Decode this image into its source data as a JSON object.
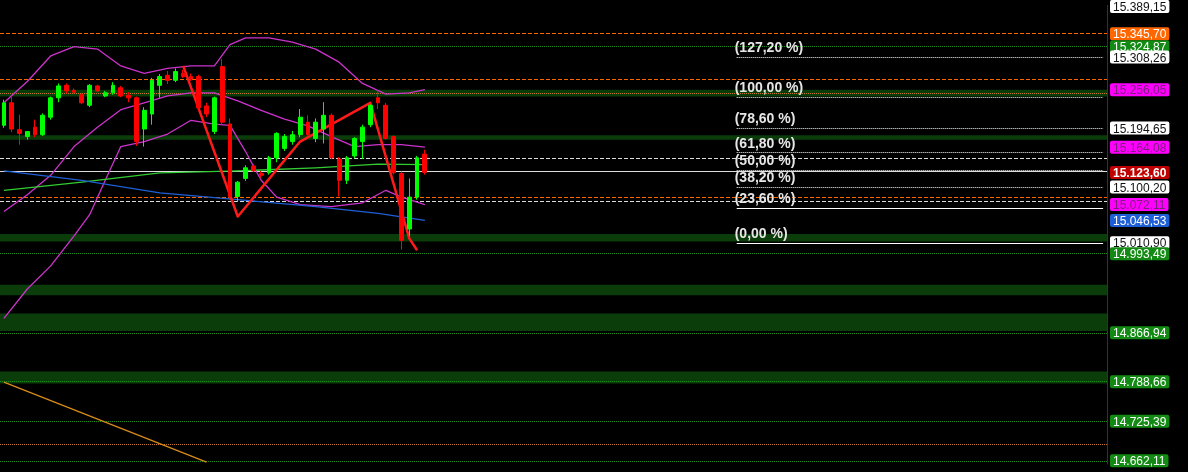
{
  "chart_data": {
    "type": "candlestick",
    "categories": [
      null,
      null,
      null,
      null,
      null,
      null,
      null,
      null,
      null,
      null,
      null,
      null,
      null,
      null,
      null,
      null,
      null,
      null,
      null,
      null,
      null,
      null,
      null,
      null,
      null,
      null,
      null,
      null,
      null,
      null,
      null,
      null,
      null,
      null,
      null,
      null,
      null,
      null,
      null,
      null,
      null,
      null,
      null,
      null,
      null,
      null,
      null,
      null,
      null,
      null,
      null,
      null,
      null,
      null,
      null,
      null,
      null,
      null,
      null,
      null,
      null,
      null,
      null,
      null,
      null,
      null,
      null,
      null,
      null,
      null,
      null,
      null,
      null,
      null,
      null,
      null,
      null,
      null,
      null,
      null,
      null,
      null,
      null,
      null,
      null,
      null,
      null,
      null,
      null,
      null,
      null,
      null,
      null,
      null,
      null,
      null,
      null,
      null,
      null,
      null,
      null,
      null,
      null,
      null,
      null,
      null,
      null,
      null,
      null,
      null,
      null,
      null,
      null,
      null,
      null,
      null,
      null,
      null,
      null,
      null,
      null,
      null,
      null,
      null,
      null,
      null,
      null,
      null,
      null,
      null,
      null,
      null,
      null,
      null,
      null,
      null,
      null,
      null,
      null,
      null,
      null,
      null
    ],
    "ohlc": [
      [
        15199,
        15240,
        15195,
        15235
      ],
      [
        15235,
        15245,
        15188,
        15193
      ],
      [
        15192,
        15216,
        15168,
        15186
      ],
      [
        15181,
        15190,
        15176,
        15189
      ],
      [
        15196,
        15208,
        15180,
        15184
      ],
      [
        15184,
        15218,
        15182,
        15215
      ],
      [
        15212,
        15245,
        15208,
        15243
      ],
      [
        15243,
        15266,
        15236,
        15262
      ],
      [
        15263,
        15266,
        15250,
        15254
      ],
      [
        15255,
        15258,
        15250,
        15252
      ],
      [
        15248,
        15250,
        15233,
        15235
      ],
      [
        15231,
        15265,
        15228,
        15263
      ],
      [
        15262,
        15264,
        15252,
        15254
      ],
      [
        15246,
        15254,
        15244,
        15251
      ],
      [
        15251,
        15268,
        15248,
        15263
      ],
      [
        15259,
        15262,
        15244,
        15246
      ],
      [
        15247,
        15252,
        15236,
        15243
      ],
      [
        15243,
        15245,
        15166,
        15173
      ],
      [
        15193,
        15228,
        15165,
        15223
      ],
      [
        15217,
        15275,
        15200,
        15271
      ],
      [
        15263,
        15281,
        15243,
        15277
      ],
      [
        15279,
        15286,
        15265,
        15271
      ],
      [
        15271,
        15290,
        15268,
        15285
      ],
      [
        15282,
        15288,
        15275,
        15277
      ],
      [
        15277,
        15282,
        15270,
        15273
      ],
      [
        15277,
        15280,
        15223,
        15227
      ],
      [
        15230,
        15235,
        15212,
        15217
      ],
      [
        15189,
        15245,
        15185,
        15243
      ],
      [
        15293,
        15305,
        15200,
        15204
      ],
      [
        15201,
        15210,
        15080,
        15085
      ],
      [
        15085,
        15110,
        15077,
        15108
      ],
      [
        15114,
        15135,
        15110,
        15131
      ],
      [
        15134,
        15137,
        15124,
        15126
      ],
      [
        15122,
        15126,
        15115,
        15119
      ],
      [
        15123,
        15150,
        15120,
        15147
      ],
      [
        15147,
        15188,
        15140,
        15186
      ],
      [
        15162,
        15185,
        15158,
        15181
      ],
      [
        15173,
        15190,
        15168,
        15184
      ],
      [
        15184,
        15225,
        15180,
        15212
      ],
      [
        15204,
        15215,
        15182,
        15184
      ],
      [
        15178,
        15210,
        15172,
        15204
      ],
      [
        15193,
        15236,
        15170,
        15215
      ],
      [
        15215,
        15218,
        15145,
        15147
      ],
      [
        15145,
        15148,
        15085,
        15111
      ],
      [
        15111,
        15150,
        15105,
        15147
      ],
      [
        15150,
        15180,
        15146,
        15178
      ],
      [
        15173,
        15200,
        15145,
        15196
      ],
      [
        15200,
        15232,
        15196,
        15231
      ],
      [
        15243,
        15255,
        15225,
        15235
      ],
      [
        15231,
        15235,
        15176,
        15178
      ],
      [
        15181,
        15183,
        15120,
        15123
      ],
      [
        15122,
        15125,
        15000,
        15015
      ],
      [
        15033,
        15114,
        15022,
        15084
      ],
      [
        15084,
        15150,
        15080,
        15147
      ],
      [
        15153,
        15160,
        15120,
        15123.6
      ],
      null,
      null,
      null,
      null,
      null,
      null,
      null,
      null,
      null,
      null,
      null,
      null,
      null,
      null,
      null,
      null,
      null,
      null,
      null,
      null,
      null,
      null,
      null,
      null,
      null,
      null,
      null,
      null,
      null,
      null,
      null,
      null,
      null,
      null,
      null,
      null,
      null,
      null,
      null,
      null,
      null,
      null,
      null,
      null,
      null,
      null,
      null,
      null,
      null,
      null,
      null,
      null,
      null,
      null,
      null,
      null,
      null,
      null,
      null,
      null,
      null,
      null,
      null,
      null,
      null,
      null,
      null,
      null,
      null,
      null,
      null,
      null,
      null,
      null,
      null,
      null,
      null,
      null,
      null,
      null,
      null,
      null,
      null,
      null,
      null,
      null,
      null
    ],
    "series": [
      {
        "type": "line",
        "color": "#cc33cc",
        "values": [
          15235,
          null,
          null,
          15269,
          null,
          null,
          15310,
          null,
          null,
          15325,
          null,
          null,
          15321,
          null,
          null,
          15294,
          null,
          null,
          15282,
          null,
          null,
          15290,
          null,
          null,
          15294,
          null,
          null,
          15294,
          null,
          15328,
          null,
          15339,
          null,
          null,
          15339,
          null,
          null,
          15332,
          null,
          null,
          15321,
          null,
          null,
          15300,
          null,
          null,
          15266,
          null,
          null,
          15249,
          null,
          null,
          15251,
          null,
          15256,
          null,
          null,
          null,
          null,
          null,
          null,
          null,
          null,
          null,
          null,
          null,
          null,
          null,
          null,
          null,
          null,
          null,
          null,
          null,
          null,
          null,
          null,
          null,
          null,
          null,
          null,
          null,
          null,
          null,
          null,
          null,
          null,
          null,
          null,
          null,
          null,
          null,
          null,
          null,
          null,
          null,
          null,
          null,
          null,
          null,
          null,
          null,
          null,
          null,
          null,
          null,
          null,
          null,
          null,
          null,
          null,
          null,
          null,
          null,
          null,
          null,
          null,
          null,
          null,
          null,
          null,
          null,
          null,
          null,
          null,
          null,
          null,
          null,
          null,
          null,
          null,
          null,
          null,
          null,
          null,
          null,
          null,
          null,
          null,
          null,
          null,
          null
        ]
      },
      {
        "type": "line",
        "color": "#cc33cc",
        "values": [
          15061,
          null,
          null,
          15088,
          null,
          null,
          15119,
          null,
          null,
          15165,
          null,
          null,
          15196,
          null,
          null,
          15224,
          null,
          null,
          15235,
          null,
          null,
          15246,
          null,
          null,
          15251,
          null,
          null,
          15251,
          null,
          null,
          15238,
          null,
          null,
          15223,
          null,
          null,
          15209,
          null,
          null,
          15198,
          null,
          null,
          15181,
          null,
          null,
          15165,
          null,
          null,
          15168,
          null,
          null,
          15168,
          null,
          null,
          15164,
          null,
          null,
          null,
          null,
          null,
          null,
          null,
          null,
          null,
          null,
          null,
          null,
          null,
          null,
          null,
          null,
          null,
          null,
          null,
          null,
          null,
          null,
          null,
          null,
          null,
          null,
          null,
          null,
          null,
          null,
          null,
          null,
          null,
          null,
          null,
          null,
          null,
          null,
          null,
          null,
          null,
          null,
          null,
          null,
          null,
          null,
          null,
          null,
          null,
          null,
          null,
          null,
          null,
          null,
          null,
          null,
          null,
          null,
          null,
          null,
          null,
          null,
          null,
          null,
          null,
          null,
          null,
          null,
          null,
          null,
          null,
          null,
          null,
          null,
          null,
          null,
          null,
          null,
          null,
          null,
          null,
          null,
          null,
          null,
          null,
          null,
          null
        ]
      },
      {
        "type": "line",
        "color": "#cc33cc",
        "values": [
          14890,
          null,
          null,
          14937,
          null,
          null,
          14974,
          null,
          null,
          15022,
          null,
          15056,
          null,
          15111,
          null,
          15165,
          null,
          null,
          15173,
          null,
          null,
          15185,
          null,
          null,
          15207,
          null,
          null,
          15201,
          null,
          15199,
          null,
          15157,
          null,
          15111,
          null,
          15084,
          null,
          null,
          15072,
          null,
          null,
          null,
          15069,
          null,
          null,
          null,
          15075,
          null,
          null,
          15095,
          null,
          15084,
          null,
          null,
          15072,
          null,
          null,
          null,
          null,
          null,
          null,
          null,
          null,
          null,
          null,
          null,
          null,
          null,
          null,
          null,
          null,
          null,
          null,
          null,
          null,
          null,
          null,
          null,
          null,
          null,
          null,
          null,
          null,
          null,
          null,
          null,
          null,
          null,
          null,
          null,
          null,
          null,
          null,
          null,
          null,
          null,
          null,
          null,
          null,
          null,
          null,
          null,
          null,
          null,
          null,
          null,
          null,
          null,
          null,
          null,
          null,
          null,
          null,
          null,
          null,
          null,
          null,
          null,
          null,
          null,
          null,
          null,
          null,
          null,
          null,
          null,
          null,
          null,
          null,
          null,
          null,
          null,
          null,
          null,
          null,
          null,
          null,
          null,
          null,
          null,
          null,
          null
        ]
      },
      {
        "type": "line",
        "color": "#33cc33",
        "values": [
          15095,
          null,
          null,
          null,
          null,
          null,
          null,
          null,
          null,
          null,
          15108,
          null,
          null,
          null,
          null,
          null,
          null,
          null,
          null,
          null,
          15123,
          null,
          null,
          null,
          null,
          null,
          null,
          null,
          null,
          null,
          15126,
          null,
          null,
          null,
          null,
          null,
          null,
          null,
          null,
          null,
          15131,
          null,
          null,
          null,
          null,
          null,
          null,
          null,
          15137,
          null,
          null,
          null,
          null,
          null,
          15136,
          null,
          null,
          null,
          null,
          null,
          null,
          null,
          null,
          null,
          null,
          null,
          null,
          null,
          null,
          null,
          null,
          null,
          null,
          null,
          null,
          null,
          null,
          null,
          null,
          null,
          null,
          null,
          null,
          null,
          null,
          null,
          null,
          null,
          null,
          null,
          null,
          null,
          null,
          null,
          null,
          null,
          null,
          null,
          null,
          null,
          null,
          null,
          null,
          null,
          null,
          null,
          null,
          null,
          null,
          null,
          null,
          null,
          null,
          null,
          null,
          null,
          null,
          null,
          null,
          null,
          null,
          null,
          null,
          null,
          null,
          null,
          null,
          null,
          null,
          null,
          null,
          null,
          null,
          null,
          null,
          null,
          null,
          null,
          null,
          null,
          null,
          null
        ]
      },
      {
        "type": "line",
        "color": "#1f5fd6",
        "values": [
          15126,
          null,
          null,
          null,
          null,
          null,
          null,
          null,
          null,
          null,
          15111,
          null,
          null,
          null,
          null,
          null,
          null,
          null,
          null,
          null,
          15091,
          null,
          null,
          null,
          null,
          null,
          null,
          null,
          null,
          null,
          15080,
          null,
          null,
          null,
          null,
          null,
          null,
          null,
          null,
          null,
          15069,
          null,
          null,
          null,
          null,
          null,
          null,
          null,
          15058,
          null,
          null,
          null,
          null,
          null,
          15047,
          null,
          null,
          null,
          null,
          null,
          null,
          null,
          null,
          null,
          null,
          null,
          null,
          null,
          null,
          null,
          null,
          null,
          null,
          null,
          null,
          null,
          null,
          null,
          null,
          null,
          null,
          null,
          null,
          null,
          null,
          null,
          null,
          null,
          null,
          null,
          null,
          null,
          null,
          null,
          null,
          null,
          null,
          null,
          null,
          null,
          null,
          null,
          null,
          null,
          null,
          null,
          null,
          null,
          null,
          null,
          null,
          null,
          null,
          null,
          null,
          null,
          null,
          null,
          null,
          null,
          null,
          null,
          null,
          null,
          null,
          null,
          null,
          null,
          null,
          null,
          null,
          null,
          null,
          null,
          null,
          null,
          null,
          null,
          null,
          null,
          null,
          null
        ]
      },
      {
        "type": "line",
        "color": "#d98c1a",
        "values": [
          14788,
          null,
          null,
          null,
          null,
          null,
          null,
          null,
          null,
          null,
          null,
          null,
          null,
          null,
          null,
          null,
          null,
          null,
          null,
          null,
          null,
          null,
          null,
          null,
          null,
          null,
          14660,
          null,
          null,
          null,
          null,
          null,
          null,
          null,
          null,
          null,
          null,
          null,
          null,
          null,
          null,
          null,
          null,
          null,
          null,
          null,
          null,
          null,
          null,
          null,
          null,
          null,
          null,
          null,
          null,
          null,
          null,
          null,
          null,
          null,
          null,
          null,
          null,
          null,
          null,
          null,
          null,
          null,
          null,
          null,
          null,
          null,
          null,
          null,
          null,
          null,
          null,
          null,
          null,
          null,
          null,
          null,
          null,
          null,
          null,
          null,
          null,
          null,
          null,
          null,
          null,
          null,
          null,
          null,
          null,
          null,
          null,
          null,
          null,
          null,
          null,
          null,
          null,
          null,
          null,
          null,
          null,
          null,
          null,
          null,
          null,
          null,
          null,
          null,
          null,
          null,
          null,
          null,
          null,
          null,
          null,
          null,
          null,
          null,
          null,
          null,
          null,
          null,
          null,
          null,
          null,
          null,
          null,
          null,
          null,
          null,
          null,
          null,
          null,
          null,
          null,
          null
        ]
      },
      {
        "type": "line",
        "color": "#ff1a1a",
        "values": [
          null,
          null,
          null,
          null,
          null,
          null,
          null,
          null,
          null,
          null,
          null,
          null,
          null,
          null,
          null,
          null,
          null,
          null,
          null,
          null,
          null,
          null,
          null,
          15294,
          null,
          null,
          null,
          null,
          null,
          null,
          15053,
          null,
          null,
          null,
          null,
          null,
          null,
          null,
          15173,
          null,
          null,
          null,
          null,
          null,
          null,
          null,
          null,
          15235,
          null,
          null,
          null,
          null,
          15018,
          14999,
          null,
          null,
          null,
          null,
          null,
          null,
          null,
          null,
          null,
          null,
          null,
          null,
          null,
          null,
          null,
          null,
          null,
          null,
          null,
          null,
          null,
          null,
          null,
          null,
          null,
          null,
          null,
          null,
          null,
          null,
          null,
          null,
          null,
          null,
          null,
          null,
          null,
          null,
          null,
          null,
          null,
          null,
          null,
          null,
          null,
          null,
          null,
          null,
          null,
          null,
          null,
          null,
          null,
          null,
          null,
          null,
          null,
          null,
          null,
          null,
          null,
          null,
          null,
          null,
          null,
          null,
          null,
          null,
          null,
          null,
          null,
          null,
          null,
          null,
          null,
          null,
          null,
          null,
          null,
          null,
          null,
          null,
          null,
          null,
          null,
          null,
          null,
          null
        ]
      }
    ],
    "ylim": [
      14657,
      15391
    ],
    "yticks": [
      {
        "value": 15389.15,
        "label": "15.389,15"
      },
      {
        "value": 15345.7,
        "label": "15.345,70"
      },
      {
        "value": 15324.87,
        "label": "15.324,87"
      },
      {
        "value": 15308.26,
        "label": "15.308,26"
      },
      {
        "value": 15256.05,
        "label": "15.256,05"
      },
      {
        "value": 15194.65,
        "label": "15.194,65"
      },
      {
        "value": 15164.08,
        "label": "15.164,08"
      },
      {
        "value": 15123.6,
        "label": "15.123,60"
      },
      {
        "value": 15100.2,
        "label": "15.100,20"
      },
      {
        "value": 15072.11,
        "label": "15.072,11"
      },
      {
        "value": 15046.53,
        "label": "15.046,53"
      },
      {
        "value": 15010.9,
        "label": "15.010,90"
      },
      {
        "value": 14993.49,
        "label": "14.993,49"
      },
      {
        "value": 14866.94,
        "label": "14.866,94"
      },
      {
        "value": 14788.66,
        "label": "14.788,66"
      },
      {
        "value": 14725.39,
        "label": "14.725,39"
      },
      {
        "value": 14662.11,
        "label": "14.662,11"
      }
    ],
    "ref_lines": [
      {
        "axis": "y",
        "value": 15345.7,
        "color": "#ff6600",
        "line_style": "dashed"
      },
      {
        "axis": "y",
        "value": 15324.87,
        "color": "#1a8f1a",
        "line_style": "dotted"
      },
      {
        "axis": "y",
        "value": 15272,
        "color": "#ff6600",
        "line_style": "dashed"
      },
      {
        "axis": "y",
        "value": 15251,
        "color": "#c87533",
        "line_style": "dotted"
      },
      {
        "axis": "y",
        "value": 15146.6,
        "color": "#dddddd",
        "line_style": "dashed"
      },
      {
        "axis": "y",
        "value": 15126,
        "color": "#dddddd",
        "line_style": "solid"
      },
      {
        "axis": "y",
        "value": 15084,
        "color": "#ff6600",
        "line_style": "dashed"
      },
      {
        "axis": "y",
        "value": 15078,
        "color": "#dddddd",
        "line_style": "dashed"
      },
      {
        "axis": "y",
        "value": 14993.49,
        "color": "#1a8f1a",
        "line_style": "dotted"
      },
      {
        "axis": "y",
        "value": 14866.94,
        "color": "#1a8f1a",
        "line_style": "dotted"
      },
      {
        "axis": "y",
        "value": 14788.66,
        "color": "#1a8f1a",
        "line_style": "dotted"
      },
      {
        "axis": "y",
        "value": 14725.39,
        "color": "#1a8f1a",
        "line_style": "dotted"
      },
      {
        "axis": "y",
        "value": 14688,
        "color": "#c87533",
        "line_style": "dotted"
      },
      {
        "axis": "y",
        "value": 14662.11,
        "color": "#1a8f1a",
        "line_style": "dotted"
      },
      {
        "axis": "y",
        "value": 15308.26,
        "color": "#ffffff",
        "line_style": "dotted"
      },
      {
        "axis": "y",
        "value": 15244.68,
        "color": "#ffffff",
        "line_style": "dotted"
      },
      {
        "axis": "y",
        "value": 15194.65,
        "color": "#ffffff",
        "line_style": "dotted"
      },
      {
        "axis": "y",
        "value": 15155.37,
        "color": "#ffffff",
        "line_style": "dotted"
      },
      {
        "axis": "y",
        "value": 15127.79,
        "color": "#ffffff",
        "line_style": "dotted"
      },
      {
        "axis": "y",
        "value": 15100.2,
        "color": "#ffffff",
        "line_style": "dotted"
      },
      {
        "axis": "y",
        "value": 15066.07,
        "color": "#ffffff",
        "line_style": "solid"
      },
      {
        "axis": "y",
        "value": 15010.9,
        "color": "#ffffff",
        "line_style": "solid"
      }
    ],
    "annotations": [
      {
        "text": "(127,20 %)",
        "y": 15308.26
      },
      {
        "text": "(100,00 %)",
        "y": 15244.68
      },
      {
        "text": "(78,60 %)",
        "y": 15194.65
      },
      {
        "text": "(61,80 %)",
        "y": 15155.37
      },
      {
        "text": "(50,00 %)",
        "y": 15127.79
      },
      {
        "text": "(38,20 %)",
        "y": 15100.2
      },
      {
        "text": "(23,60 %)",
        "y": 15066.07
      },
      {
        "text": "(0,00 %)",
        "y": 15010.9
      }
    ],
    "bands": [
      {
        "axis": "y",
        "from": 15245,
        "to": 15256,
        "color": "#0b3d0b"
      },
      {
        "axis": "y",
        "from": 15176,
        "to": 15183,
        "color": "#0b3d0b"
      },
      {
        "axis": "y",
        "from": 15013,
        "to": 15025,
        "color": "#0b3d0b"
      },
      {
        "axis": "y",
        "from": 14927,
        "to": 14944,
        "color": "#0b3d0b"
      },
      {
        "axis": "y",
        "from": 14870,
        "to": 14898,
        "color": "#0b3d0b"
      },
      {
        "axis": "y",
        "from": 14786,
        "to": 14805,
        "color": "#0b3d0b"
      }
    ],
    "marker": "none",
    "line_style": "solid",
    "grid": false
  }
}
